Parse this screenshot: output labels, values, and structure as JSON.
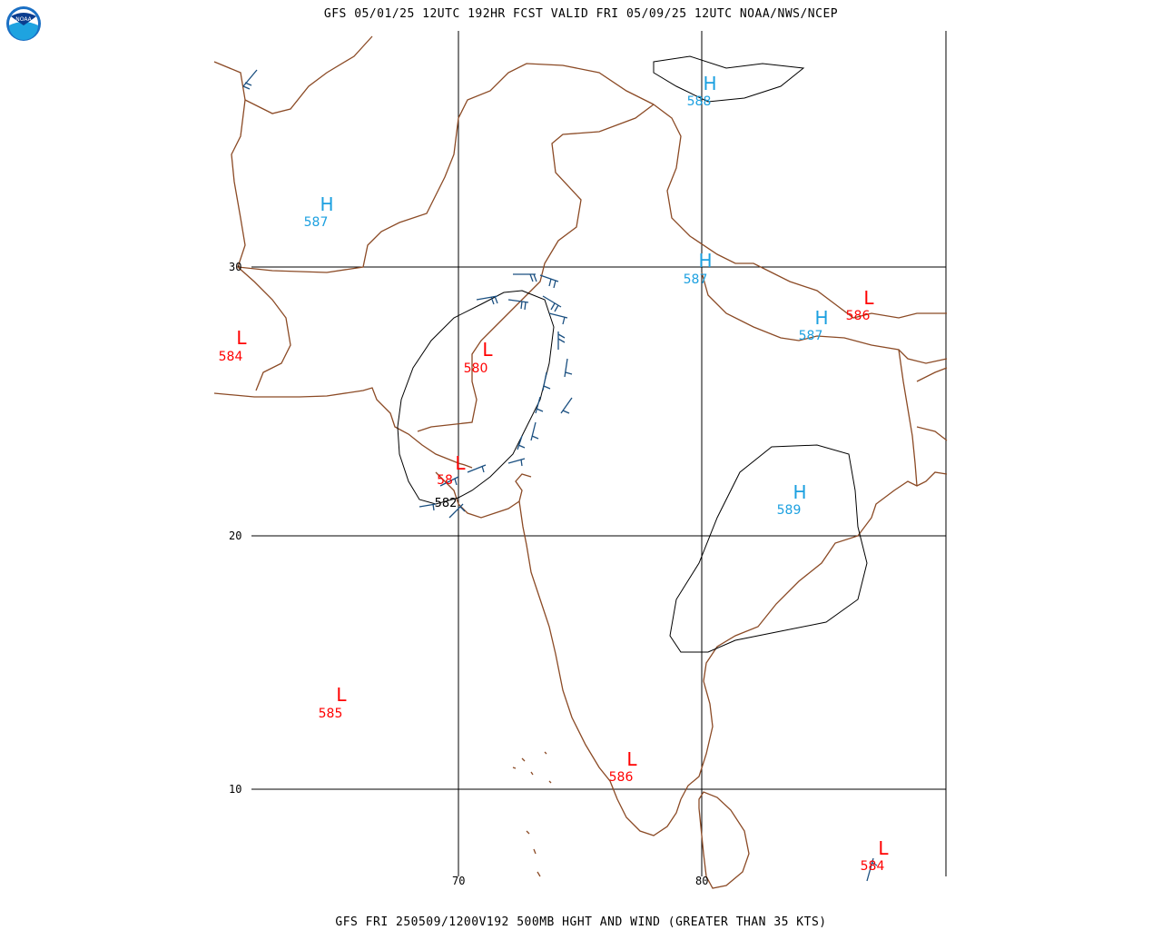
{
  "header": {
    "title": "GFS 05/01/25 12UTC 192HR FCST VALID FRI 05/09/25 12UTC NOAA/NWS/NCEP"
  },
  "footer": {
    "title": "GFS FRI 250509/1200V192 500MB HGHT AND WIND (GREATER THAN 35 KTS)"
  },
  "logo": {
    "text": "NOAA",
    "icon": "noaa-logo-icon"
  },
  "colors": {
    "coast": "#8b4a25",
    "grid": "#000000",
    "high": "#1ca0e0",
    "low": "#ff0000",
    "barb": "#1a4f80",
    "contour": "#000000"
  },
  "axes": {
    "lat_labels": [
      {
        "value": 30,
        "text": "30"
      },
      {
        "value": 20,
        "text": "20"
      },
      {
        "value": 10,
        "text": "10"
      }
    ],
    "lon_labels": [
      {
        "value": 70,
        "text": "70"
      },
      {
        "value": 80,
        "text": "80"
      }
    ]
  },
  "pressure_centers": [
    {
      "type": "H",
      "value": "588"
    },
    {
      "type": "H",
      "value": "587"
    },
    {
      "type": "H",
      "value": "587"
    },
    {
      "type": "H",
      "value": "587"
    },
    {
      "type": "H",
      "value": "589"
    },
    {
      "type": "L",
      "value": "584"
    },
    {
      "type": "L",
      "value": "580"
    },
    {
      "type": "L",
      "value": "58"
    },
    {
      "type": "L",
      "value": "586"
    },
    {
      "type": "L",
      "value": "585"
    },
    {
      "type": "L",
      "value": "586"
    },
    {
      "type": "L",
      "value": "584"
    }
  ],
  "contour_labels": [
    {
      "text": "582"
    }
  ]
}
